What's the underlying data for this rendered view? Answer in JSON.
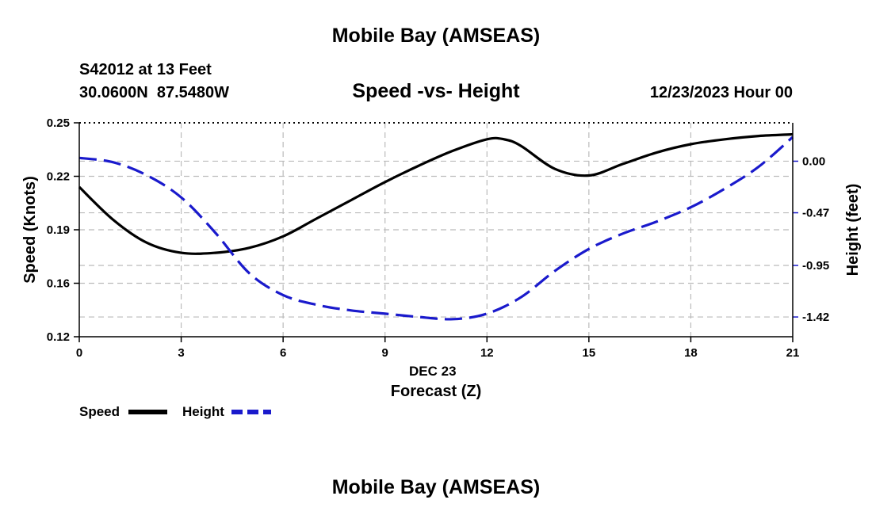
{
  "page": {
    "top_title": "Mobile Bay (AMSEAS)",
    "bottom_title": "Mobile Bay (AMSEAS)",
    "station_line": "S42012 at 13 Feet",
    "coords_line": "30.0600N  87.5480W",
    "date_line": "12/23/2023 Hour 00"
  },
  "chart_data": {
    "type": "line",
    "title": "Speed -vs- Height",
    "xlabel": "Forecast (Z)",
    "x_date_label": "DEC 23",
    "ylabel": "Speed (Knots)",
    "y2label": "Height (feet)",
    "xlim": [
      0,
      21
    ],
    "ylim": [
      0.12,
      0.25
    ],
    "y2lim": [
      -1.6,
      0.35
    ],
    "x_ticks": [
      "0",
      "3",
      "6",
      "9",
      "12",
      "15",
      "18",
      "21"
    ],
    "y_ticks": [
      "0.12",
      "0.16",
      "0.19",
      "0.22",
      "0.25"
    ],
    "y_tick_values": [
      0.12,
      0.1525,
      0.185,
      0.2175,
      0.25
    ],
    "y2_ticks": [
      "0.00",
      "-0.47",
      "-0.95",
      "-1.42"
    ],
    "y2_tick_values": [
      0.0,
      -0.47,
      -0.95,
      -1.42
    ],
    "grid": true,
    "legend_position": "bottom-left",
    "series": [
      {
        "name": "Speed",
        "axis": "left",
        "color": "#000000",
        "dash": "solid",
        "x": [
          0,
          1,
          2,
          3,
          4,
          5,
          6,
          7,
          8,
          9,
          10,
          11,
          12,
          12.5,
          13,
          14,
          15,
          16,
          17,
          18,
          19,
          20,
          21
        ],
        "values": [
          0.211,
          0.191,
          0.177,
          0.171,
          0.171,
          0.174,
          0.181,
          0.192,
          0.203,
          0.214,
          0.224,
          0.233,
          0.24,
          0.24,
          0.236,
          0.222,
          0.218,
          0.225,
          0.232,
          0.237,
          0.24,
          0.242,
          0.243
        ]
      },
      {
        "name": "Height",
        "axis": "right",
        "color": "#1a1acc",
        "dash": "dashed",
        "x": [
          0,
          1,
          2,
          3,
          4,
          5,
          6,
          7,
          8,
          9,
          10,
          11,
          12,
          13,
          14,
          15,
          16,
          17,
          18,
          19,
          20,
          21
        ],
        "values": [
          0.03,
          -0.01,
          -0.13,
          -0.33,
          -0.65,
          -1.02,
          -1.22,
          -1.31,
          -1.36,
          -1.39,
          -1.42,
          -1.44,
          -1.39,
          -1.24,
          -1.0,
          -0.8,
          -0.66,
          -0.55,
          -0.42,
          -0.25,
          -0.05,
          0.22
        ]
      }
    ]
  }
}
